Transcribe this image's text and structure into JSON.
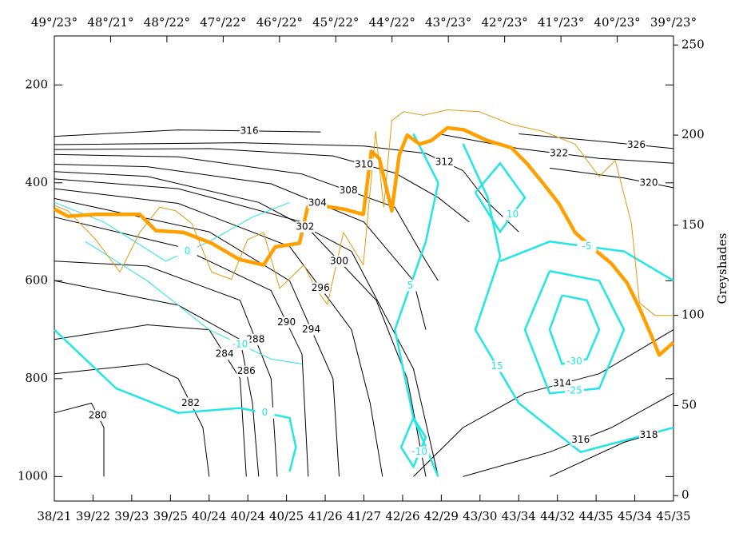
{
  "chart_data": {
    "type": "cross-section",
    "y2label": "Greyshades",
    "xlim": [
      0,
      100
    ],
    "ylim": [
      1050,
      100
    ],
    "yticks": [
      200,
      400,
      600,
      800,
      1000
    ],
    "y2lim": [
      -3,
      255
    ],
    "y2ticks": [
      0,
      50,
      100,
      150,
      200,
      250
    ],
    "top_categories": [
      "49°/23°",
      "48°/21°",
      "48°/22°",
      "47°/22°",
      "46°/22°",
      "45°/22°",
      "44°/22°",
      "43°/23°",
      "42°/23°",
      "41°/23°",
      "40°/23°",
      "39°/23°"
    ],
    "categories": [
      "38/21",
      "39/22",
      "39/23",
      "39/25",
      "40/24",
      "40/24",
      "40/25",
      "41/26",
      "41/27",
      "42/26",
      "42/29",
      "43/30",
      "43/34",
      "44/32",
      "44/35",
      "45/34",
      "45/35"
    ],
    "contour_groups": [
      {
        "color": "#000000",
        "width": 1,
        "contours": [
          {
            "level": 316,
            "x": [
              0,
              20,
              43
            ],
            "values": [
              305,
              292,
              296
            ]
          },
          {
            "level": 312,
            "x": [
              0,
              30,
              50,
              60,
              66,
              70,
              75
            ],
            "values": [
              322,
              318,
              325,
              340,
              375,
              440,
              500
            ]
          },
          {
            "level": 310,
            "x": [
              0,
              25,
              45,
              55,
              62,
              67
            ],
            "values": [
              332,
              330,
              345,
              380,
              430,
              480
            ]
          },
          {
            "level": 308,
            "x": [
              0,
              20,
              40,
              55,
              60,
              62
            ],
            "values": [
              342,
              347,
              382,
              450,
              560,
              600
            ]
          },
          {
            "level": 304,
            "x": [
              0,
              15,
              35,
              50,
              58,
              60
            ],
            "values": [
              362,
              367,
              402,
              480,
              600,
              700
            ]
          },
          {
            "level": 302,
            "x": [
              0,
              15,
              33,
              48,
              58,
              62
            ],
            "values": [
              377,
              387,
              440,
              540,
              780,
              1000
            ]
          },
          {
            "level": 300,
            "x": [
              0,
              20,
              40,
              52,
              57,
              60
            ],
            "values": [
              392,
              412,
              480,
              640,
              800,
              1000
            ]
          },
          {
            "level": 296,
            "x": [
              0,
              20,
              38,
              48,
              51,
              53
            ],
            "values": [
              412,
              442,
              530,
              700,
              850,
              1000
            ]
          },
          {
            "level": 294,
            "x": [
              0,
              25,
              38,
              45,
              46
            ],
            "values": [
              432,
              500,
              600,
              800,
              1000
            ]
          },
          {
            "level": 290,
            "x": [
              0,
              20,
              35,
              40,
              41
            ],
            "values": [
              470,
              530,
              620,
              750,
              1000
            ]
          },
          {
            "level": 288,
            "x": [
              0,
              15,
              30,
              35,
              36
            ],
            "values": [
              560,
              570,
              640,
              800,
              1000
            ]
          },
          {
            "level": 286,
            "x": [
              0,
              20,
              30,
              32,
              33
            ],
            "values": [
              600,
              650,
              720,
              850,
              1000
            ]
          },
          {
            "level": 284,
            "x": [
              0,
              15,
              25,
              30,
              31
            ],
            "values": [
              720,
              690,
              700,
              800,
              1000
            ]
          },
          {
            "level": 282,
            "x": [
              0,
              15,
              20,
              24,
              25
            ],
            "values": [
              790,
              770,
              800,
              900,
              1000
            ]
          },
          {
            "level": 280,
            "x": [
              0,
              6,
              8,
              8
            ],
            "values": [
              870,
              850,
              900,
              1000
            ]
          },
          {
            "level": 314,
            "x": [
              58,
              66,
              76,
              88,
              100
            ],
            "values": [
              1000,
              900,
              830,
              790,
              700
            ]
          },
          {
            "level": 316,
            "x": [
              66,
              80,
              90,
              100
            ],
            "values": [
              1000,
              950,
              900,
              830
            ]
          },
          {
            "level": 318,
            "x": [
              80,
              92,
              100
            ],
            "values": [
              1000,
              930,
              900
            ]
          },
          {
            "level": 322,
            "x": [
              62,
              75,
              88,
              100
            ],
            "values": [
              300,
              330,
              350,
              360
            ]
          },
          {
            "level": 326,
            "x": [
              75,
              88,
              100
            ],
            "values": [
              300,
              315,
              330
            ]
          },
          {
            "level": 320,
            "x": [
              80,
              92,
              100
            ],
            "values": [
              370,
              390,
              410
            ]
          }
        ]
      },
      {
        "color": "#22e6e6",
        "width": 2.5,
        "contours": [
          {
            "level": 0,
            "x": [
              0,
              10,
              20,
              30,
              38,
              39,
              38
            ],
            "values": [
              700,
              820,
              870,
              860,
              880,
              940,
              990
            ]
          },
          {
            "level": 5,
            "x": [
              58,
              62,
              60,
              55,
              58,
              62
            ],
            "values": [
              300,
              400,
              520,
              700,
              880,
              1000
            ]
          },
          {
            "level": -10,
            "x": [
              56,
              58,
              60,
              58,
              56
            ],
            "values": [
              940,
              880,
              920,
              980,
              940
            ]
          },
          {
            "level": 15,
            "x": [
              66,
              70,
              72,
              68,
              75,
              85,
              100
            ],
            "values": [
              320,
              430,
              550,
              700,
              850,
              950,
              900
            ]
          },
          {
            "level": 10,
            "x": [
              68,
              72,
              76,
              72,
              68
            ],
            "values": [
              420,
              360,
              430,
              500,
              420
            ]
          },
          {
            "level": -25,
            "x": [
              80,
              88,
              92,
              88,
              80,
              76,
              80
            ],
            "values": [
              580,
              600,
              700,
              820,
              830,
              700,
              580
            ]
          },
          {
            "level": -30,
            "x": [
              82,
              86,
              88,
              86,
              82,
              80,
              82
            ],
            "values": [
              630,
              640,
              700,
              760,
              770,
              700,
              630
            ]
          },
          {
            "level": -5,
            "x": [
              72,
              80,
              92,
              100
            ],
            "values": [
              560,
              520,
              540,
              600
            ]
          }
        ]
      },
      {
        "color": "#22e6e6",
        "width": 1,
        "contours": [
          {
            "level": 0,
            "x": [
              0,
              8,
              18,
              25,
              32,
              38
            ],
            "values": [
              440,
              480,
              560,
              520,
              470,
              440
            ]
          },
          {
            "level": -10,
            "x": [
              5,
              15,
              25,
              35,
              40
            ],
            "values": [
              520,
              600,
              700,
              760,
              770
            ]
          }
        ]
      }
    ],
    "series": [
      {
        "color": "#ffa000",
        "width": 4.5,
        "axis": "y2",
        "x": [
          0,
          2.2,
          6.7,
          13.8,
          16.4,
          20.9,
          25.4,
          29.9,
          33.8,
          35.7,
          39.6,
          40.9,
          42.8,
          46.7,
          49.9,
          51.2,
          52.5,
          54.5,
          55.7,
          57.0,
          59.0,
          60.9,
          63.5,
          66.1,
          69.9,
          73.8,
          76.4,
          79.0,
          81.5,
          84.1,
          86.7,
          89.9,
          92.5,
          94.5,
          96.4,
          97.7,
          100
        ],
        "values": [
          159,
          155,
          156,
          156,
          147,
          146,
          140,
          131,
          128,
          138,
          140,
          160,
          161,
          159,
          156,
          191,
          187,
          158,
          189,
          200,
          195,
          197,
          204,
          203,
          197,
          193,
          184,
          173,
          162,
          146,
          138,
          129,
          118,
          104,
          89,
          78,
          85
        ]
      },
      {
        "color": "#e09a10",
        "width": 1,
        "axis": "y2",
        "x": [
          0,
          2.2,
          6.7,
          10.6,
          13.8,
          17,
          19.6,
          22.2,
          25.4,
          28.6,
          31.2,
          33.8,
          36.4,
          40.3,
          42.2,
          44.1,
          46.7,
          49.9,
          51.9,
          53.2,
          54.5,
          56.4,
          59.6,
          63.5,
          68.6,
          73.8,
          79,
          84.1,
          88,
          90.6,
          93.2,
          94.5,
          97,
          100
        ],
        "values": [
          161,
          158,
          142,
          124,
          146,
          160,
          158,
          151,
          124,
          120,
          142,
          146,
          115,
          128,
          115,
          106,
          146,
          128,
          202,
          160,
          208,
          213,
          211,
          214,
          213,
          206,
          202,
          195,
          177,
          186,
          151,
          107,
          100,
          100
        ]
      }
    ]
  }
}
